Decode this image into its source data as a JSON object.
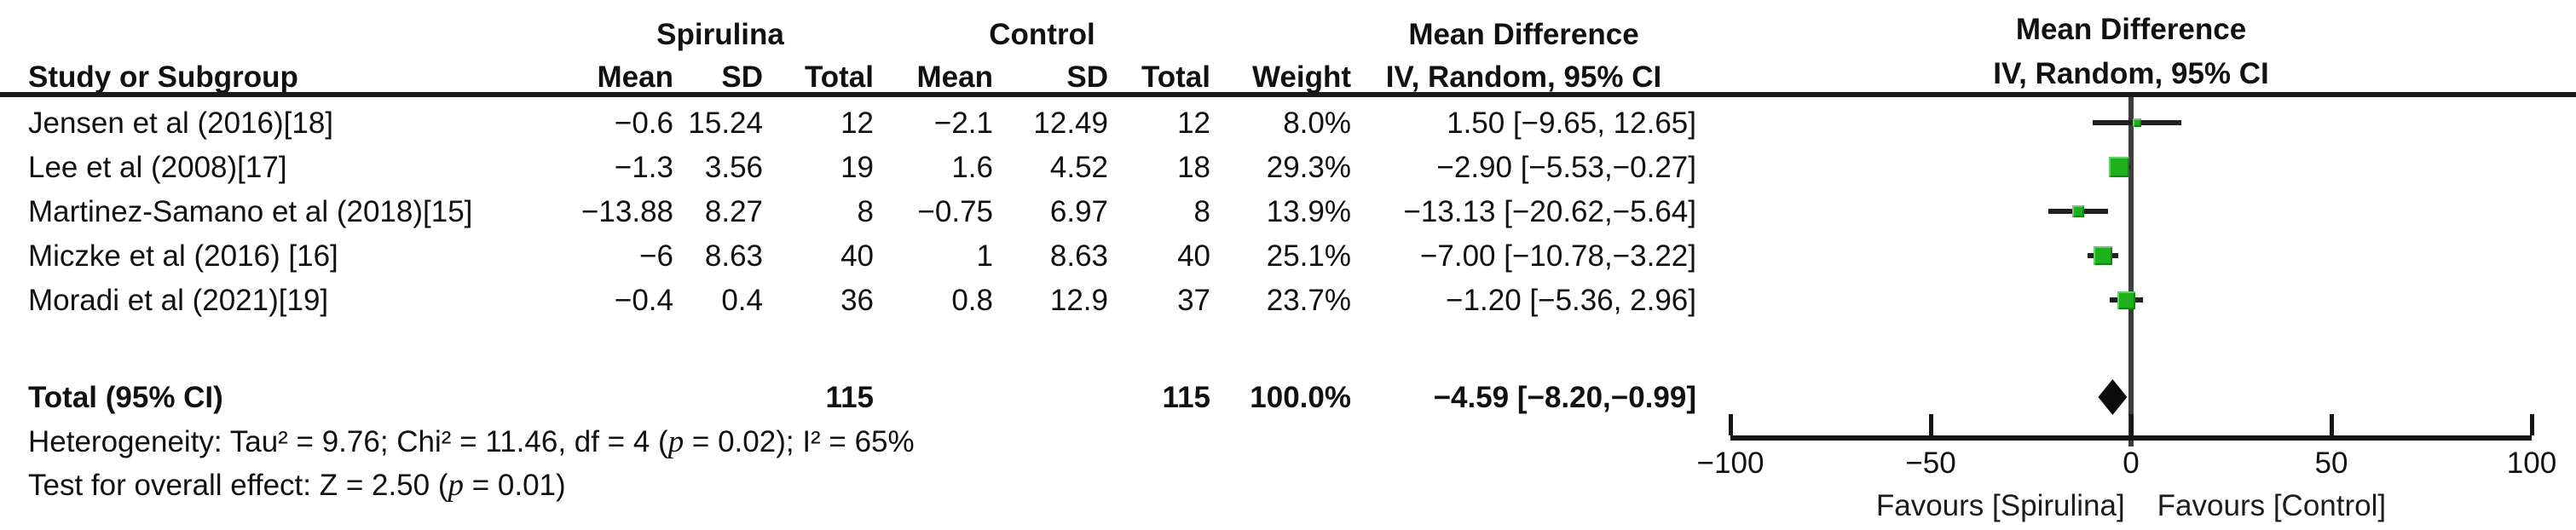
{
  "table": {
    "group1_label": "Spirulina",
    "group2_label": "Control",
    "md_header": "Mean Difference",
    "method_header": "IV, Random, 95% CI",
    "col": {
      "study": "Study or Subgroup",
      "mean": "Mean",
      "sd": "SD",
      "total": "Total",
      "weight": "Weight"
    },
    "rows": [
      {
        "study": "Jensen et al (2016)[18]",
        "mean1": "−0.6",
        "sd1": "15.24",
        "total1": "12",
        "mean2": "−2.1",
        "sd2": "12.49",
        "total2": "12",
        "weight": "8.0%",
        "ci": "1.50 [−9.65, 12.65]"
      },
      {
        "study": "Lee et al (2008)[17]",
        "mean1": "−1.3",
        "sd1": "3.56",
        "total1": "19",
        "mean2": "1.6",
        "sd2": "4.52",
        "total2": "18",
        "weight": "29.3%",
        "ci": "−2.90 [−5.53,−0.27]"
      },
      {
        "study": "Martinez-Samano et al (2018)[15]",
        "mean1": "−13.88",
        "sd1": "8.27",
        "total1": "8",
        "mean2": "−0.75",
        "sd2": "6.97",
        "total2": "8",
        "weight": "13.9%",
        "ci": "−13.13 [−20.62,−5.64]"
      },
      {
        "study": "Miczke et al (2016) [16]",
        "mean1": "−6",
        "sd1": "8.63",
        "total1": "40",
        "mean2": "1",
        "sd2": "8.63",
        "total2": "40",
        "weight": "25.1%",
        "ci": "−7.00 [−10.78,−3.22]"
      },
      {
        "study": "Moradi et al (2021)[19]",
        "mean1": "−0.4",
        "sd1": "0.4",
        "total1": "36",
        "mean2": "0.8",
        "sd2": "12.9",
        "total2": "37",
        "weight": "23.7%",
        "ci": "−1.20 [−5.36, 2.96]"
      }
    ],
    "total": {
      "label": "Total (95% CI)",
      "total1": "115",
      "total2": "115",
      "weight": "100.0%",
      "ci": "−4.59 [−8.20,−0.99]"
    }
  },
  "footnotes": {
    "heterogeneity": {
      "prefix": "Heterogeneity: Tau² = 9.76; Chi² = 11.46, df = 4 (",
      "p": "p",
      "suffix": " = 0.02); I² = 65%"
    },
    "overall_effect": {
      "prefix": "Test for overall effect: Z = 2.50 (",
      "p": "p",
      "suffix": " = 0.01)"
    }
  },
  "chart_data": {
    "type": "forest",
    "effect_measure": "Mean Difference",
    "model": "IV, Random, 95% CI",
    "x_axis": {
      "min": -100,
      "max": 100,
      "ticks": [
        -100,
        -50,
        0,
        50,
        100
      ],
      "tick_labels": [
        "−100",
        "−50",
        "0",
        "50",
        "100"
      ]
    },
    "favours_left": "Favours [Spirulina]",
    "favours_right": "Favours [Control]",
    "studies": [
      {
        "name": "Jensen et al (2016)[18]",
        "md": 1.5,
        "ci_low": -9.65,
        "ci_high": 12.65,
        "weight_pct": 8.0
      },
      {
        "name": "Lee et al (2008)[17]",
        "md": -2.9,
        "ci_low": -5.53,
        "ci_high": -0.27,
        "weight_pct": 29.3
      },
      {
        "name": "Martinez-Samano et al (2018)[15]",
        "md": -13.13,
        "ci_low": -20.62,
        "ci_high": -5.64,
        "weight_pct": 13.9
      },
      {
        "name": "Miczke et al (2016) [16]",
        "md": -7.0,
        "ci_low": -10.78,
        "ci_high": -3.22,
        "weight_pct": 25.1
      },
      {
        "name": "Moradi et al (2021)[19]",
        "md": -1.2,
        "ci_low": -5.36,
        "ci_high": 2.96,
        "weight_pct": 23.7
      }
    ],
    "total": {
      "md": -4.59,
      "ci_low": -8.2,
      "ci_high": -0.99,
      "weight_pct": 100.0
    },
    "marker_color": "#1db11d",
    "diamond_color": "#0b0b0b",
    "line_color": "#222222"
  }
}
